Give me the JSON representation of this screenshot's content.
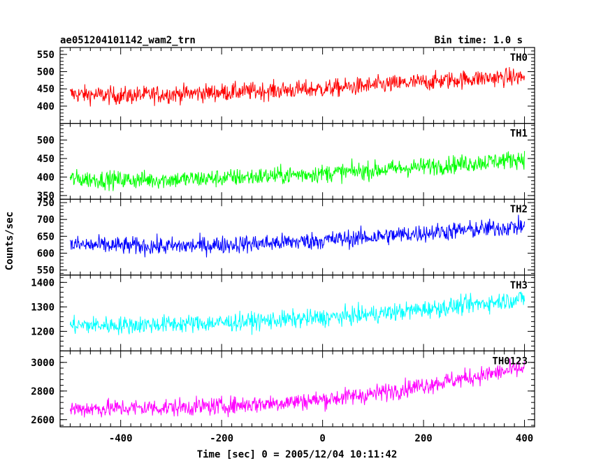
{
  "chart_data": {
    "type": "line",
    "title": "ae051204101142_wam2_trn",
    "bin_time_label": "Bin time: 1.0 s",
    "xlabel": "Time [sec] 0 = 2005/12/04 10:11:42",
    "ylabel": "Counts/sec",
    "xlim": [
      -520,
      420
    ],
    "xticks": [
      -400,
      -200,
      0,
      200,
      400
    ],
    "grid": false,
    "panels": [
      {
        "name": "TH0",
        "color": "#ff0000",
        "ylim": [
          350,
          570
        ],
        "yticks": [
          400,
          450,
          500,
          550
        ],
        "x": [
          -500,
          -400,
          -300,
          -200,
          -100,
          0,
          100,
          200,
          300,
          400
        ],
        "values": [
          435,
          430,
          435,
          440,
          445,
          450,
          460,
          470,
          480,
          485
        ]
      },
      {
        "name": "TH1",
        "color": "#00ff00",
        "ylim": [
          340,
          545
        ],
        "yticks": [
          350,
          400,
          450,
          500
        ],
        "x": [
          -500,
          -400,
          -300,
          -200,
          -100,
          0,
          100,
          200,
          300,
          400
        ],
        "values": [
          395,
          392,
          393,
          397,
          403,
          410,
          418,
          428,
          438,
          450
        ]
      },
      {
        "name": "TH2",
        "color": "#0000ff",
        "ylim": [
          535,
          760
        ],
        "yticks": [
          550,
          600,
          650,
          700,
          750
        ],
        "x": [
          -500,
          -400,
          -300,
          -200,
          -100,
          0,
          100,
          200,
          300,
          400
        ],
        "values": [
          625,
          622,
          620,
          625,
          630,
          638,
          648,
          660,
          670,
          680
        ]
      },
      {
        "name": "TH3",
        "color": "#00ffff",
        "ylim": [
          1120,
          1430
        ],
        "yticks": [
          1200,
          1300,
          1400
        ],
        "x": [
          -500,
          -400,
          -300,
          -200,
          -100,
          0,
          100,
          200,
          300,
          400
        ],
        "values": [
          1225,
          1225,
          1230,
          1235,
          1245,
          1255,
          1270,
          1290,
          1310,
          1335
        ]
      },
      {
        "name": "TH0123",
        "color": "#ff00ff",
        "ylim": [
          2550,
          3080
        ],
        "yticks": [
          2600,
          2800,
          3000
        ],
        "x": [
          -500,
          -400,
          -300,
          -200,
          -100,
          0,
          100,
          200,
          300,
          400
        ],
        "values": [
          2675,
          2680,
          2685,
          2695,
          2715,
          2740,
          2780,
          2840,
          2900,
          2960
        ]
      }
    ]
  }
}
